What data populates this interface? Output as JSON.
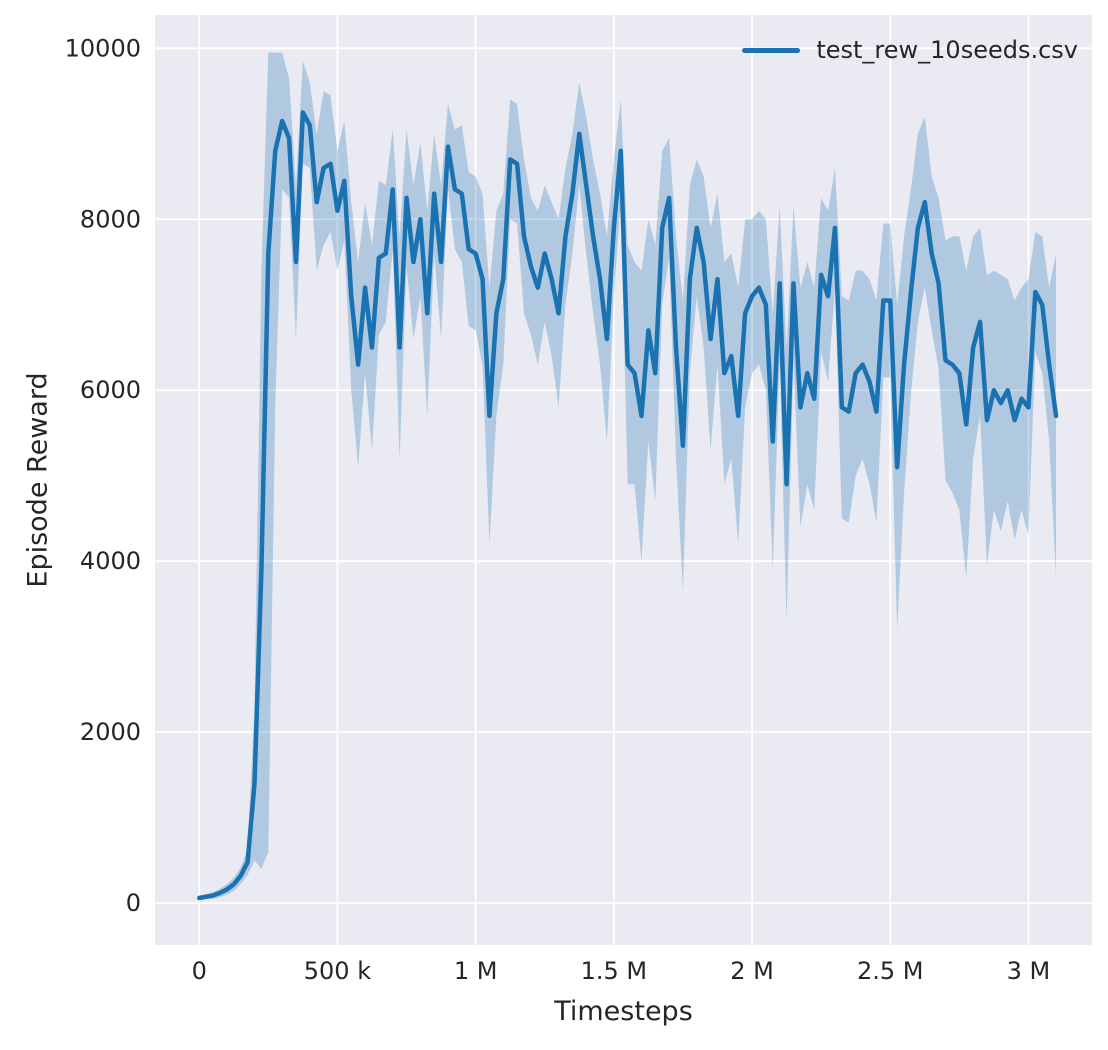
{
  "chart_data": {
    "type": "line",
    "title": "",
    "xlabel": "Timesteps",
    "ylabel": "Episode Reward",
    "xlim": [
      -160000,
      3230000
    ],
    "ylim": [
      -490,
      10390
    ],
    "grid": true,
    "legend": {
      "label": "test_rew_10seeds.csv",
      "position": "upper right"
    },
    "colors": {
      "line": "#1a72b0",
      "band_opacity": 0.27,
      "axes_bg": "#eaeaf2",
      "grid": "#ffffff",
      "text": "#262626",
      "figure_bg": "#ffffff"
    },
    "x_ticks": [
      {
        "value": 0,
        "label": "0"
      },
      {
        "value": 500000,
        "label": "500 k"
      },
      {
        "value": 1000000,
        "label": "1 M"
      },
      {
        "value": 1500000,
        "label": "1.5 M"
      },
      {
        "value": 2000000,
        "label": "2 M"
      },
      {
        "value": 2500000,
        "label": "2.5 M"
      },
      {
        "value": 3000000,
        "label": "3 M"
      }
    ],
    "y_ticks": [
      {
        "value": 0,
        "label": "0"
      },
      {
        "value": 2000,
        "label": "2000"
      },
      {
        "value": 4000,
        "label": "4000"
      },
      {
        "value": 6000,
        "label": "6000"
      },
      {
        "value": 8000,
        "label": "8000"
      },
      {
        "value": 10000,
        "label": "10000"
      }
    ],
    "series": [
      {
        "name": "test_rew_10seeds.csv",
        "x_start": 0,
        "x_step": 25000,
        "mean": [
          60,
          75,
          90,
          120,
          160,
          220,
          320,
          480,
          1400,
          3900,
          7600,
          8800,
          9150,
          8950,
          7500,
          9250,
          9100,
          8200,
          8600,
          8650,
          8100,
          8450,
          7100,
          6300,
          7200,
          6500,
          7550,
          7600,
          8350,
          6500,
          8250,
          7500,
          8000,
          6900,
          8300,
          7500,
          8850,
          8350,
          8300,
          7650,
          7600,
          7300,
          5700,
          6900,
          7300,
          8700,
          8650,
          7800,
          7450,
          7200,
          7600,
          7300,
          6900,
          7800,
          8300,
          9000,
          8400,
          7800,
          7300,
          6600,
          7900,
          8800,
          6300,
          6200,
          5700,
          6700,
          6200,
          7900,
          8250,
          6500,
          5350,
          7300,
          7900,
          7500,
          6600,
          7300,
          6200,
          6400,
          5700,
          6900,
          7100,
          7200,
          7000,
          5400,
          7250,
          4900,
          7250,
          5800,
          6200,
          5900,
          7350,
          7100,
          7900,
          5800,
          5750,
          6200,
          6300,
          6100,
          5750,
          7050,
          7050,
          5100,
          6300,
          7150,
          7900,
          8200,
          7600,
          7250,
          6350,
          6300,
          6200,
          5600,
          6500,
          6800,
          5650,
          6000,
          5850,
          6000,
          5650,
          5900,
          5800,
          7150,
          7000,
          6300,
          5700
        ],
        "spread": [
          30,
          30,
          40,
          50,
          60,
          80,
          100,
          150,
          900,
          3500,
          7000,
          3000,
          800,
          700,
          900,
          600,
          500,
          800,
          900,
          800,
          700,
          700,
          1100,
          1200,
          1000,
          1200,
          900,
          800,
          700,
          1300,
          800,
          900,
          900,
          1200,
          700,
          900,
          500,
          700,
          800,
          900,
          900,
          1000,
          1500,
          1200,
          1000,
          700,
          700,
          900,
          800,
          900,
          800,
          900,
          1100,
          800,
          700,
          600,
          800,
          900,
          1000,
          1200,
          800,
          600,
          1400,
          1300,
          1700,
          1300,
          1500,
          900,
          700,
          1300,
          1700,
          1100,
          800,
          1000,
          1300,
          1000,
          1300,
          1200,
          1500,
          1100,
          900,
          900,
          1000,
          1500,
          900,
          1600,
          900,
          1400,
          1300,
          1300,
          900,
          1000,
          700,
          1300,
          1300,
          1200,
          1100,
          1200,
          1300,
          900,
          900,
          1900,
          1500,
          1200,
          1100,
          1000,
          900,
          1000,
          1400,
          1500,
          1600,
          1800,
          1300,
          1100,
          1700,
          1400,
          1500,
          1300,
          1400,
          1300,
          1500,
          700,
          800,
          900,
          1900
        ]
      }
    ]
  }
}
